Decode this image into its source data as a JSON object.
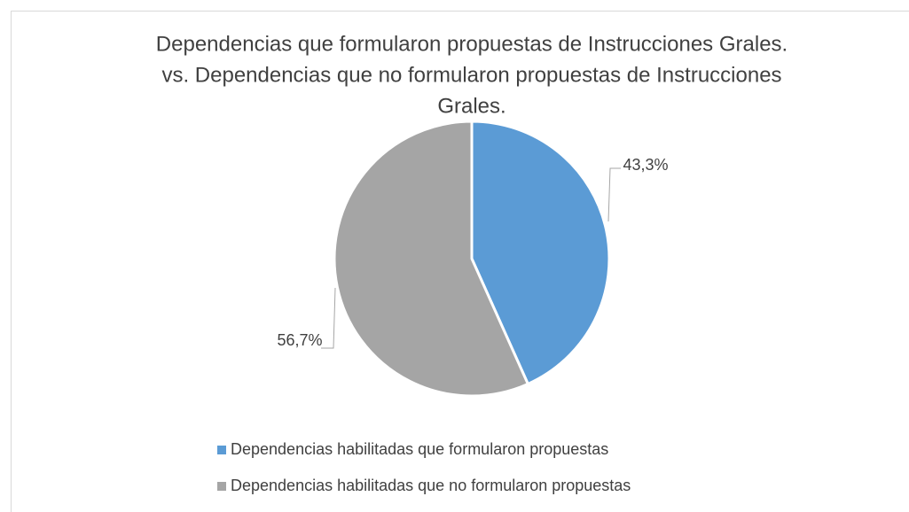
{
  "chart_data": {
    "type": "pie",
    "title": [
      "Dependencias que formularon propuestas de Instrucciones Grales.",
      "vs. Dependencias que no formularon propuestas de Instrucciones",
      "Grales."
    ],
    "categories": [
      "Dependencias habilitadas que formularon propuestas",
      "Dependencias habilitadas que no formularon propuestas"
    ],
    "values": [
      43.3,
      56.7
    ],
    "value_labels": [
      "43,3%",
      "56,7%"
    ],
    "colors": [
      "#5b9bd5",
      "#a5a5a5"
    ],
    "legend": "bottom"
  }
}
